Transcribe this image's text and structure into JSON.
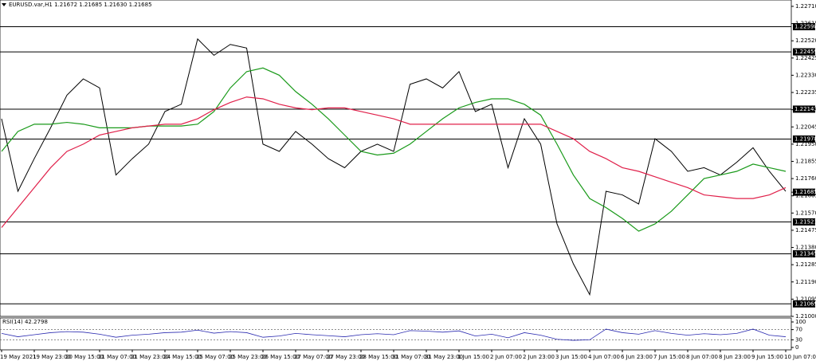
{
  "chart_data": {
    "type": "line",
    "title": "EURUSD.var,H1 1.21672 1.21685 1.21630 1.21685",
    "categories": [
      "19 May 2021",
      null,
      "19 May 23:00",
      null,
      "20 May 15:00",
      null,
      "21 May 07:00",
      null,
      "21 May 23:00",
      null,
      "24 May 15:00",
      null,
      "25 May 07:00",
      null,
      "25 May 23:00",
      null,
      "26 May 15:00",
      null,
      "27 May 07:00",
      null,
      "27 May 23:00",
      null,
      "28 May 15:00",
      null,
      "31 May 07:00",
      null,
      "31 May 23:00",
      null,
      "1 Jun 15:00",
      null,
      "2 Jun 07:00",
      null,
      "2 Jun 23:00",
      null,
      "3 Jun 15:00",
      null,
      "4 Jun 07:00",
      null,
      "6 Jun 23:00",
      null,
      "7 Jun 15:00",
      null,
      "8 Jun 07:00",
      null,
      "8 Jun 23:00",
      null,
      "9 Jun 15:00",
      null,
      "10 Jun 07:00"
    ],
    "series": [
      {
        "color": "#000000",
        "values": [
          1.2209,
          1.2169,
          1.2187,
          1.2204,
          1.2222,
          1.2231,
          1.2226,
          1.2178,
          1.2187,
          1.2195,
          1.2213,
          1.2217,
          1.2253,
          1.2244,
          1.225,
          1.2248,
          1.2195,
          1.2191,
          1.2202,
          1.2195,
          1.2187,
          1.2182,
          1.2191,
          1.2195,
          1.2191,
          1.2228,
          1.2231,
          1.2226,
          1.2235,
          1.2213,
          1.2217,
          1.2182,
          1.2209,
          1.2195,
          1.2151,
          1.2129,
          1.2112,
          1.2169,
          1.2167,
          1.2162,
          1.2198,
          1.2191,
          1.218,
          1.2182,
          1.2178,
          1.2185,
          1.2193,
          1.218,
          1.2169
        ]
      },
      {
        "color": "#1a9a1a",
        "values": [
          1.2191,
          1.2202,
          1.2206,
          1.2206,
          1.2207,
          1.2206,
          1.2204,
          1.2204,
          1.2204,
          1.2205,
          1.2205,
          1.2205,
          1.2206,
          1.2213,
          1.2226,
          1.2235,
          1.2237,
          1.2233,
          1.2224,
          1.2217,
          1.2209,
          1.22,
          1.2191,
          1.2189,
          1.219,
          1.2195,
          1.2202,
          1.2209,
          1.2215,
          1.2218,
          1.222,
          1.222,
          1.2217,
          1.2211,
          1.2195,
          1.2178,
          1.2165,
          1.216,
          1.2154,
          1.2147,
          1.2151,
          1.2158,
          1.2167,
          1.2176,
          1.2178,
          1.218,
          1.2184,
          1.2182,
          1.218
        ]
      },
      {
        "color": "#e0204a",
        "values": [
          1.2149,
          1.216,
          1.2171,
          1.2182,
          1.2191,
          1.2195,
          1.22,
          1.2202,
          1.2204,
          1.2205,
          1.2206,
          1.2206,
          1.2209,
          1.2214,
          1.2218,
          1.2221,
          1.222,
          1.2217,
          1.2215,
          1.2214,
          1.2215,
          1.2215,
          1.2213,
          1.2211,
          1.2209,
          1.2206,
          1.2206,
          1.2206,
          1.2206,
          1.2206,
          1.2206,
          1.2206,
          1.2206,
          1.2206,
          1.2202,
          1.2198,
          1.2191,
          1.2187,
          1.2182,
          1.218,
          1.2177,
          1.2174,
          1.2171,
          1.2167,
          1.2166,
          1.2165,
          1.2165,
          1.2167,
          1.2171
        ]
      }
    ],
    "ylim": [
      1.21,
      1.22745
    ],
    "yticks": [
      {
        "value": 1.2271,
        "label": "1.22710"
      },
      1.22615,
      {
        "value": 1.2252,
        "label": "1.22520"
      },
      1.22425,
      {
        "value": 1.2233,
        "label": "1.22330"
      },
      1.22235,
      {
        "value": 1.2214,
        "label": "1.22140"
      },
      1.22045,
      {
        "value": 1.2195,
        "label": "1.21950"
      },
      1.21855,
      {
        "value": 1.2176,
        "label": "1.21760"
      },
      1.21665,
      {
        "value": 1.2157,
        "label": "1.21570"
      },
      1.21475,
      {
        "value": 1.2138,
        "label": "1.21380"
      },
      1.21285,
      {
        "value": 1.2119,
        "label": "1.21190"
      },
      1.21095,
      {
        "value": 1.21,
        "label": "1.21000"
      }
    ],
    "levels": [
      1.22598,
      1.22459,
      1.22143,
      1.21978,
      1.21521,
      1.21345,
      1.21069
    ],
    "current_price": 1.21685,
    "rsi": {
      "title": "RSI(14) 42.2798",
      "color": "#2a2ab0",
      "ylim": [
        0,
        100
      ],
      "yticks": [
        0,
        30,
        70,
        100
      ],
      "levels": [
        30,
        70
      ],
      "values": [
        55,
        42,
        50,
        58,
        62,
        60,
        52,
        40,
        48,
        52,
        58,
        60,
        68,
        56,
        62,
        58,
        40,
        45,
        55,
        50,
        46,
        42,
        50,
        54,
        50,
        66,
        64,
        60,
        65,
        45,
        52,
        38,
        58,
        48,
        32,
        28,
        30,
        72,
        58,
        52,
        66,
        55,
        48,
        54,
        50,
        55,
        72,
        48,
        42
      ]
    }
  }
}
